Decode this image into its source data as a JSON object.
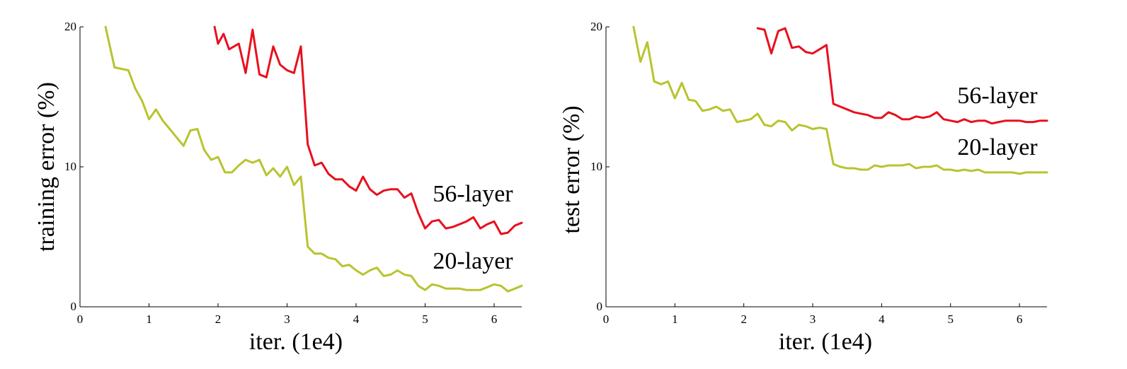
{
  "chart_data": [
    {
      "type": "line",
      "xlabel": "iter. (1e4)",
      "ylabel": "training error (%)",
      "xlim": [
        0,
        6.4
      ],
      "ylim": [
        0,
        20
      ],
      "xticks": [
        "0",
        "1",
        "2",
        "3",
        "4",
        "5",
        "6"
      ],
      "yticks": [
        "0",
        "10",
        "20"
      ],
      "grid": false,
      "series": [
        {
          "name": "56-layer",
          "color": "#e8101e",
          "x": [
            1.95,
            2.0,
            2.08,
            2.16,
            2.3,
            2.4,
            2.5,
            2.6,
            2.7,
            2.8,
            2.9,
            3.0,
            3.1,
            3.2,
            3.3,
            3.4,
            3.5,
            3.6,
            3.7,
            3.8,
            3.9,
            4.0,
            4.1,
            4.2,
            4.3,
            4.4,
            4.5,
            4.6,
            4.7,
            4.8,
            4.9,
            5.0,
            5.1,
            5.2,
            5.3,
            5.4,
            5.5,
            5.6,
            5.7,
            5.8,
            5.9,
            6.0,
            6.1,
            6.2,
            6.3,
            6.4
          ],
          "values": [
            20.0,
            18.8,
            19.5,
            18.4,
            18.8,
            16.7,
            19.8,
            16.6,
            16.4,
            18.6,
            17.3,
            16.9,
            16.7,
            18.6,
            11.6,
            10.1,
            10.3,
            9.5,
            9.1,
            9.1,
            8.6,
            8.3,
            9.3,
            8.4,
            8.0,
            8.3,
            8.4,
            8.4,
            7.8,
            8.1,
            6.7,
            5.6,
            6.1,
            6.2,
            5.6,
            5.7,
            5.9,
            6.1,
            6.4,
            5.6,
            5.9,
            6.1,
            5.2,
            5.3,
            5.8,
            6.0
          ]
        },
        {
          "name": "20-layer",
          "color": "#b8c42e",
          "x": [
            0.37,
            0.5,
            0.7,
            0.8,
            0.9,
            1.0,
            1.1,
            1.2,
            1.3,
            1.4,
            1.5,
            1.6,
            1.7,
            1.8,
            1.9,
            2.0,
            2.1,
            2.2,
            2.3,
            2.4,
            2.5,
            2.6,
            2.7,
            2.8,
            2.9,
            3.0,
            3.1,
            3.2,
            3.3,
            3.4,
            3.5,
            3.6,
            3.7,
            3.8,
            3.9,
            4.0,
            4.1,
            4.2,
            4.3,
            4.4,
            4.5,
            4.6,
            4.7,
            4.8,
            4.9,
            5.0,
            5.1,
            5.2,
            5.3,
            5.4,
            5.5,
            5.6,
            5.7,
            5.8,
            5.9,
            6.0,
            6.1,
            6.2,
            6.3,
            6.4
          ],
          "values": [
            20.0,
            17.1,
            16.9,
            15.6,
            14.7,
            13.4,
            14.1,
            13.3,
            12.7,
            12.1,
            11.5,
            12.6,
            12.7,
            11.2,
            10.5,
            10.7,
            9.6,
            9.6,
            10.1,
            10.5,
            10.3,
            10.5,
            9.4,
            9.9,
            9.3,
            10.0,
            8.7,
            9.3,
            4.3,
            3.8,
            3.8,
            3.5,
            3.4,
            2.9,
            3.0,
            2.6,
            2.3,
            2.6,
            2.8,
            2.2,
            2.3,
            2.6,
            2.3,
            2.2,
            1.5,
            1.2,
            1.6,
            1.5,
            1.3,
            1.3,
            1.3,
            1.2,
            1.2,
            1.2,
            1.4,
            1.6,
            1.5,
            1.1,
            1.3,
            1.5
          ]
        }
      ]
    },
    {
      "type": "line",
      "xlabel": "iter. (1e4)",
      "ylabel": "test error (%)",
      "xlim": [
        0,
        6.4
      ],
      "ylim": [
        0,
        20
      ],
      "xticks": [
        "0",
        "1",
        "2",
        "3",
        "4",
        "5",
        "6"
      ],
      "yticks": [
        "0",
        "10",
        "20"
      ],
      "grid": false,
      "series": [
        {
          "name": "56-layer",
          "color": "#e8101e",
          "x": [
            2.2,
            2.3,
            2.4,
            2.5,
            2.6,
            2.7,
            2.8,
            2.9,
            3.0,
            3.1,
            3.2,
            3.3,
            3.4,
            3.5,
            3.6,
            3.7,
            3.8,
            3.9,
            4.0,
            4.1,
            4.2,
            4.3,
            4.4,
            4.5,
            4.6,
            4.7,
            4.8,
            4.9,
            5.0,
            5.1,
            5.2,
            5.3,
            5.4,
            5.5,
            5.6,
            5.7,
            5.8,
            5.9,
            6.0,
            6.1,
            6.2,
            6.3,
            6.4
          ],
          "values": [
            19.9,
            19.8,
            18.1,
            19.7,
            19.9,
            18.5,
            18.6,
            18.2,
            18.1,
            18.4,
            18.7,
            14.5,
            14.3,
            14.1,
            13.9,
            13.8,
            13.7,
            13.5,
            13.5,
            13.9,
            13.7,
            13.4,
            13.4,
            13.6,
            13.5,
            13.6,
            13.9,
            13.4,
            13.3,
            13.2,
            13.4,
            13.2,
            13.3,
            13.3,
            13.1,
            13.2,
            13.3,
            13.3,
            13.3,
            13.2,
            13.2,
            13.3,
            13.3
          ]
        },
        {
          "name": "20-layer",
          "color": "#b8c42e",
          "x": [
            0.4,
            0.5,
            0.6,
            0.7,
            0.8,
            0.9,
            1.0,
            1.1,
            1.2,
            1.3,
            1.4,
            1.5,
            1.6,
            1.7,
            1.8,
            1.9,
            2.0,
            2.1,
            2.2,
            2.3,
            2.4,
            2.5,
            2.6,
            2.7,
            2.8,
            2.9,
            3.0,
            3.1,
            3.2,
            3.3,
            3.4,
            3.5,
            3.6,
            3.7,
            3.8,
            3.9,
            4.0,
            4.1,
            4.2,
            4.3,
            4.4,
            4.5,
            4.6,
            4.7,
            4.8,
            4.9,
            5.0,
            5.1,
            5.2,
            5.3,
            5.4,
            5.5,
            5.6,
            5.7,
            5.8,
            5.9,
            6.0,
            6.1,
            6.2,
            6.3,
            6.4
          ],
          "values": [
            20.0,
            17.5,
            18.9,
            16.1,
            15.9,
            16.1,
            14.9,
            16.0,
            14.8,
            14.7,
            14.0,
            14.1,
            14.3,
            14.0,
            14.1,
            13.2,
            13.3,
            13.4,
            13.8,
            13.0,
            12.9,
            13.3,
            13.2,
            12.6,
            13.0,
            12.9,
            12.7,
            12.8,
            12.7,
            10.2,
            10.0,
            9.9,
            9.9,
            9.8,
            9.8,
            10.1,
            10.0,
            10.1,
            10.1,
            10.1,
            10.2,
            9.9,
            10.0,
            10.0,
            10.1,
            9.8,
            9.8,
            9.7,
            9.8,
            9.7,
            9.8,
            9.6,
            9.6,
            9.6,
            9.6,
            9.6,
            9.5,
            9.6,
            9.6,
            9.6,
            9.6
          ]
        }
      ]
    }
  ]
}
